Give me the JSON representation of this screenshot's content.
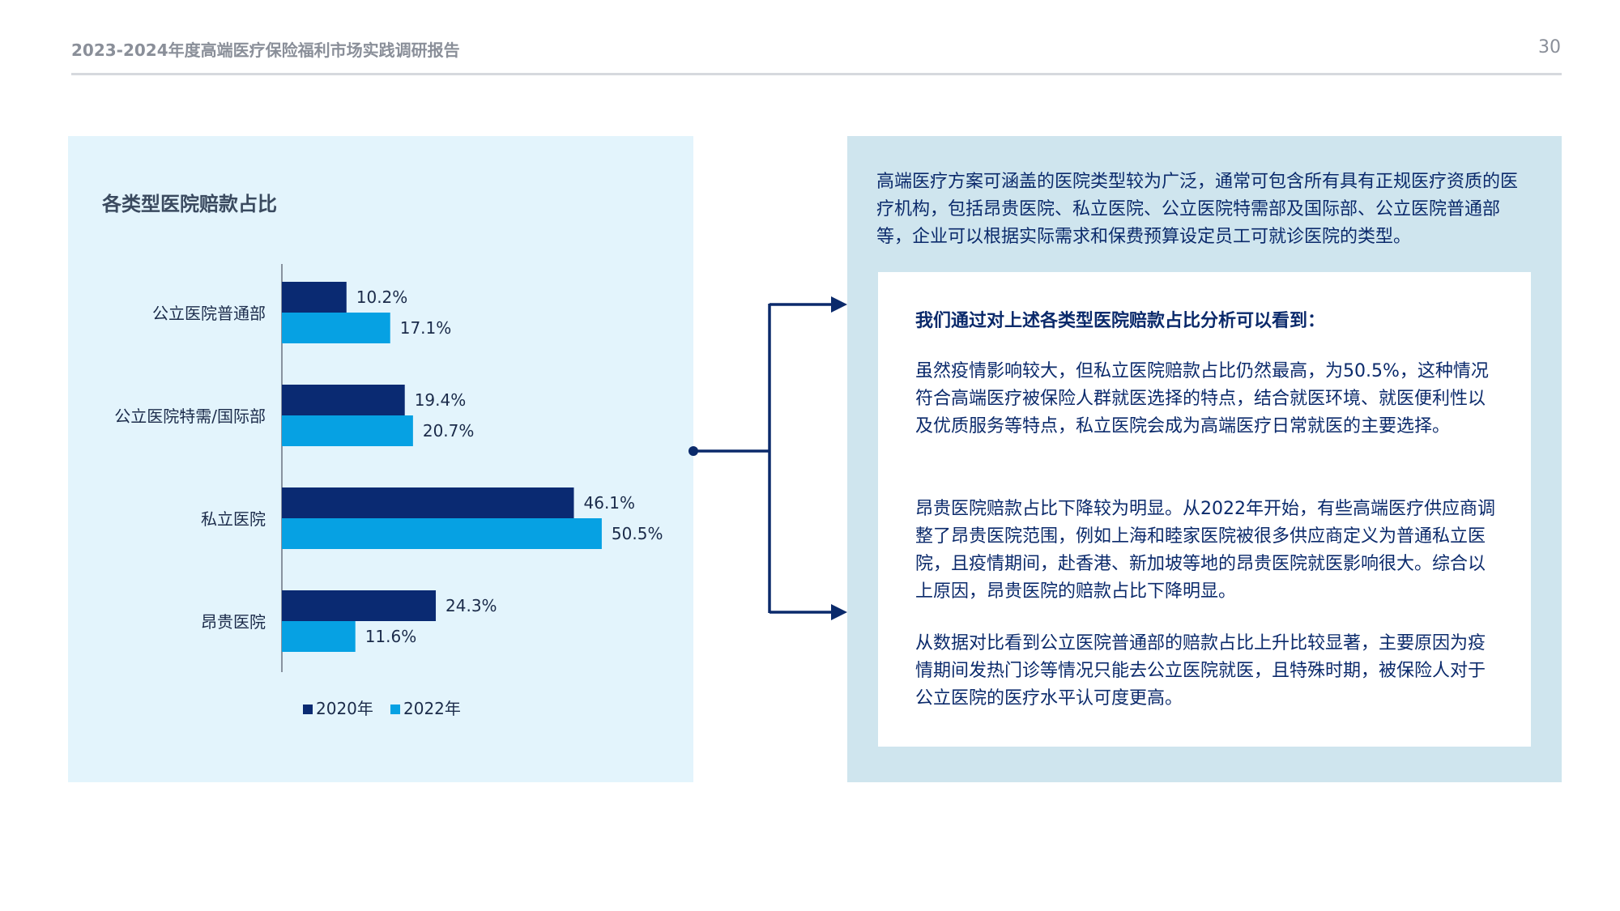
{
  "header": {
    "title": "2023-2024年度高端医疗保险福利市场实践调研报告",
    "page_number": "30"
  },
  "colors": {
    "series_2020": "#0a2a72",
    "series_2022": "#06a1e3",
    "chart_panel_bg": "#e3f4fc",
    "text_panel_bg": "#cfe5ee",
    "connector": "#0b2a6b"
  },
  "chart_data": {
    "type": "bar",
    "orientation": "horizontal",
    "title": "各类型医院赔款占比",
    "categories": [
      "公立医院普通部",
      "公立医院特需/国际部",
      "私立医院",
      "昂贵医院"
    ],
    "series": [
      {
        "name": "2020年",
        "values": [
          10.2,
          19.4,
          46.1,
          24.3
        ],
        "labels": [
          "10.2%",
          "19.4%",
          "46.1%",
          "24.3%"
        ]
      },
      {
        "name": "2022年",
        "values": [
          17.1,
          20.7,
          50.5,
          11.6
        ],
        "labels": [
          "17.1%",
          "20.7%",
          "50.5%",
          "11.6%"
        ]
      }
    ],
    "xlim": [
      0,
      55
    ],
    "grid": false,
    "legend": "bottom"
  },
  "summary": {
    "intro": "高端医疗方案可涵盖的医院类型较为广泛，通常可包含所有具有正规医疗资质的医疗机构，包括昂贵医院、私立医院、公立医院特需部及国际部、公立医院普通部等，企业可以根据实际需求和保费预算设定员工可就诊医院的类型。",
    "heading": "我们通过对上述各类型医院赔款占比分析可以看到：",
    "paragraphs": [
      "虽然疫情影响较大，但私立医院赔款占比仍然最高，为50.5%，这种情况符合高端医疗被保险人群就医选择的特点，结合就医环境、就医便利性以及优质服务等特点，私立医院会成为高端医疗日常就医的主要选择。",
      "昂贵医院赔款占比下降较为明显。从2022年开始，有些高端医疗供应商调整了昂贵医院范围，例如上海和睦家医院被很多供应商定义为普通私立医院，且疫情期间，赴香港、新加坡等地的昂贵医院就医影响很大。综合以上原因，昂贵医院的赔款占比下降明显。",
      "从数据对比看到公立医院普通部的赔款占比上升比较显著，主要原因为疫情期间发热门诊等情况只能去公立医院就医，且特殊时期，被保险人对于公立医院的医疗水平认可度更高。"
    ]
  }
}
